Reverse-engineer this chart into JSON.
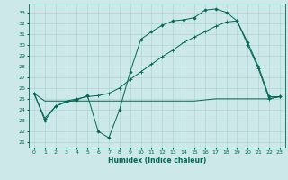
{
  "title": "",
  "xlabel": "Humidex (Indice chaleur)",
  "ylabel": "",
  "bg_color": "#cce8e8",
  "grid_color": "#aacfcf",
  "line_color": "#006655",
  "xlim": [
    -0.5,
    23.5
  ],
  "ylim": [
    20.5,
    33.8
  ],
  "yticks": [
    21,
    22,
    23,
    24,
    25,
    26,
    27,
    28,
    29,
    30,
    31,
    32,
    33
  ],
  "xticks": [
    0,
    1,
    2,
    3,
    4,
    5,
    6,
    7,
    8,
    9,
    10,
    11,
    12,
    13,
    14,
    15,
    16,
    17,
    18,
    19,
    20,
    21,
    22,
    23
  ],
  "curve1_x": [
    0,
    1,
    2,
    3,
    4,
    5,
    6,
    7,
    8,
    9,
    10,
    11,
    12,
    13,
    14,
    15,
    16,
    17,
    18,
    19,
    20,
    21,
    22,
    23
  ],
  "curve1_y": [
    25.5,
    23.0,
    24.3,
    24.7,
    24.9,
    25.3,
    22.0,
    21.4,
    24.0,
    27.5,
    30.5,
    31.2,
    31.8,
    32.2,
    32.3,
    32.5,
    33.2,
    33.3,
    33.0,
    32.2,
    30.2,
    28.0,
    25.2,
    25.2
  ],
  "curve2_x": [
    0,
    1,
    2,
    3,
    4,
    5,
    6,
    7,
    8,
    9,
    10,
    11,
    12,
    13,
    14,
    15,
    16,
    17,
    18,
    19,
    20,
    21,
    22,
    23
  ],
  "curve2_y": [
    25.5,
    23.2,
    24.3,
    24.8,
    25.0,
    25.2,
    25.3,
    25.5,
    26.0,
    26.8,
    27.5,
    28.2,
    28.9,
    29.5,
    30.2,
    30.7,
    31.2,
    31.7,
    32.1,
    32.2,
    30.0,
    27.8,
    25.0,
    25.2
  ],
  "curve3_x": [
    0,
    1,
    2,
    3,
    4,
    5,
    6,
    7,
    8,
    9,
    10,
    11,
    12,
    13,
    14,
    15,
    16,
    17,
    18,
    19,
    20,
    21,
    22,
    23
  ],
  "curve3_y": [
    25.5,
    24.8,
    24.8,
    24.8,
    24.8,
    24.8,
    24.8,
    24.8,
    24.8,
    24.8,
    24.8,
    24.8,
    24.8,
    24.8,
    24.8,
    24.8,
    24.9,
    25.0,
    25.0,
    25.0,
    25.0,
    25.0,
    25.0,
    25.2
  ],
  "font_size_ticks": 4.5,
  "font_size_xlabel": 5.5,
  "lw": 0.7,
  "ms": 1.8
}
